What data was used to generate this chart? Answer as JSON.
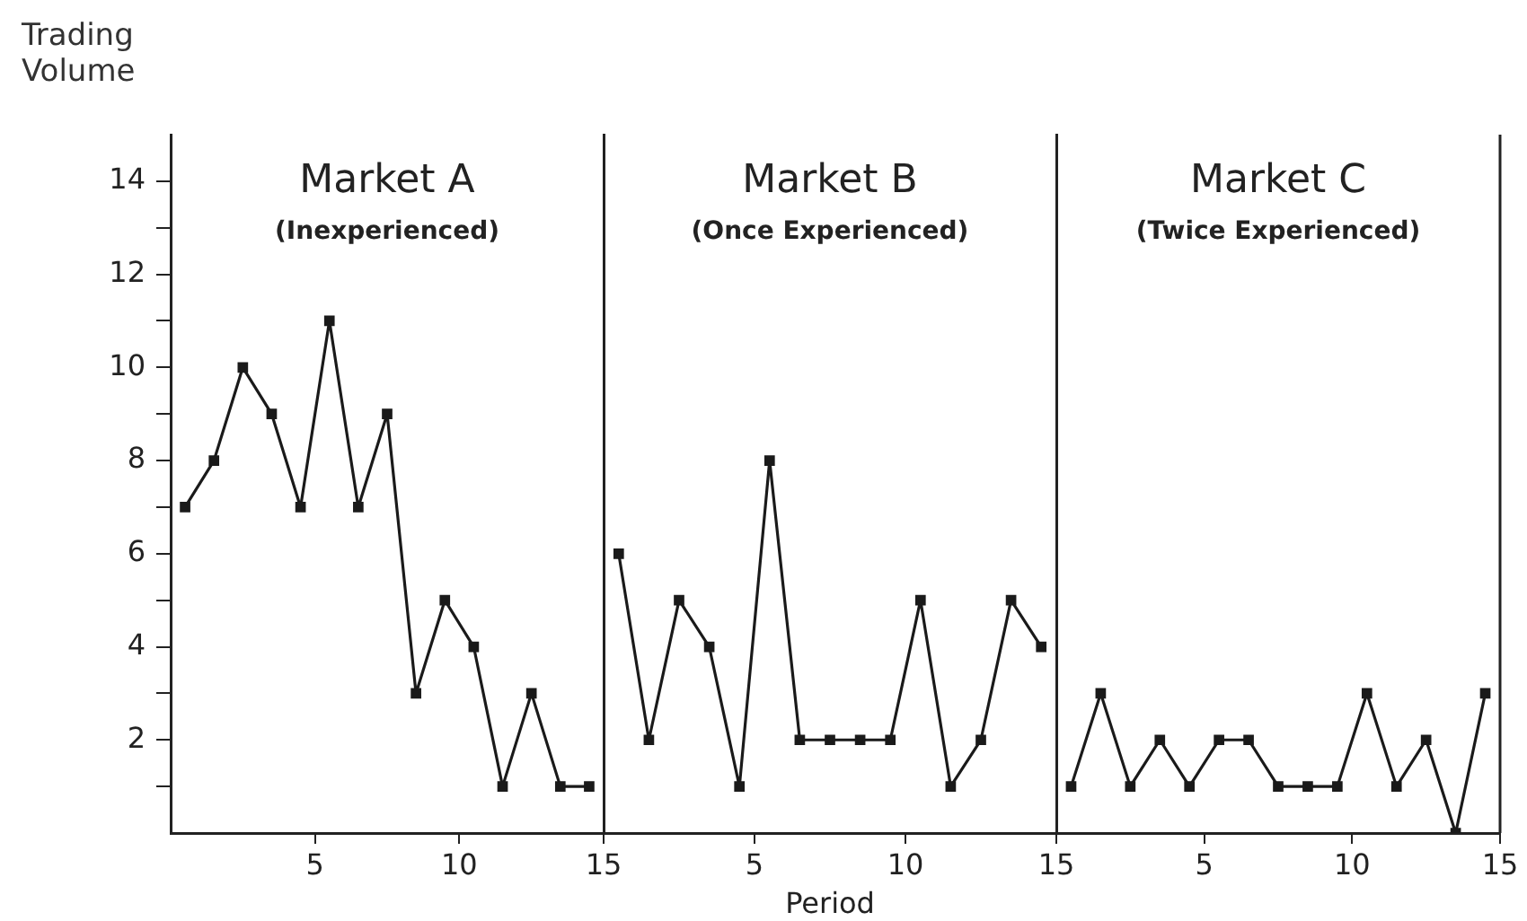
{
  "chart_data": [
    {
      "type": "line",
      "title": "Market A",
      "subtitle": "(Inexperienced)",
      "ylabel": "Trading Volume",
      "x": [
        0.5,
        1.5,
        2.5,
        3.5,
        4.5,
        5.5,
        6.5,
        7.5,
        8.5,
        9.5,
        10.5,
        11.5,
        12.5,
        13.5,
        14.5
      ],
      "series": [
        {
          "color": "#1a1a1a",
          "values": [
            7,
            8,
            10,
            9,
            7,
            11,
            7,
            9,
            3,
            5,
            4,
            1,
            3,
            1,
            1
          ]
        }
      ],
      "xlim": [
        0,
        15
      ],
      "xticks": [
        5,
        10,
        15
      ],
      "ylim": [
        0,
        15
      ],
      "yticks": [
        {
          "value": 1,
          "label": null
        },
        2,
        {
          "value": 3,
          "label": null
        },
        4,
        {
          "value": 5,
          "label": null
        },
        6,
        {
          "value": 7,
          "label": null
        },
        8,
        {
          "value": 9,
          "label": null
        },
        10,
        {
          "value": 11,
          "label": null
        },
        12,
        {
          "value": 13,
          "label": null
        },
        14
      ],
      "marker": "square"
    },
    {
      "type": "line",
      "title": "Market B",
      "subtitle": "(Once Experienced)",
      "xlabel": "Period",
      "x": [
        0.5,
        1.5,
        2.5,
        3.5,
        4.5,
        5.5,
        6.5,
        7.5,
        8.5,
        9.5,
        10.5,
        11.5,
        12.5,
        13.5,
        14.5
      ],
      "series": [
        {
          "color": "#1a1a1a",
          "values": [
            6,
            2,
            5,
            4,
            1,
            8,
            2,
            2,
            2,
            2,
            5,
            1,
            2,
            5,
            4
          ]
        }
      ],
      "xlim": [
        0,
        15
      ],
      "xticks": [
        5,
        10,
        15
      ],
      "ylim": [
        0,
        15
      ],
      "marker": "square",
      "tick_labels": "x"
    },
    {
      "type": "line",
      "title": "Market C",
      "subtitle": "(Twice Experienced)",
      "x": [
        0.5,
        1.5,
        2.5,
        3.5,
        4.5,
        5.5,
        6.5,
        7.5,
        8.5,
        9.5,
        10.5,
        11.5,
        12.5,
        13.5,
        14.5
      ],
      "series": [
        {
          "color": "#1a1a1a",
          "values": [
            1,
            3,
            1,
            2,
            1,
            2,
            2,
            1,
            1,
            1,
            3,
            1,
            2,
            0,
            3
          ]
        }
      ],
      "xlim": [
        0,
        15
      ],
      "xticks": [
        5,
        10,
        15
      ],
      "ylim": [
        0,
        15
      ],
      "marker": "square",
      "tick_labels": "x"
    }
  ]
}
